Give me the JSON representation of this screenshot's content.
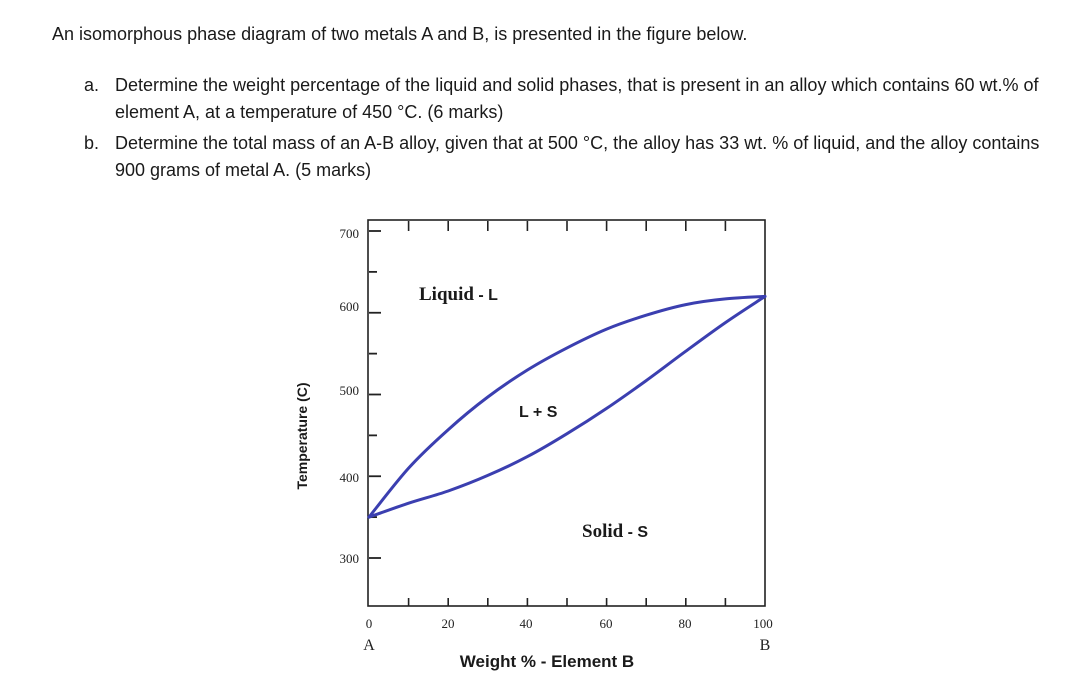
{
  "intro": "An isomorphous phase diagram of two metals A and B, is presented in the figure below.",
  "questions": [
    {
      "marker": "a.",
      "text": "Determine the weight percentage of the liquid and solid phases, that is present in an alloy which contains 60 wt.% of element A, at a temperature of 450 °C. (6 marks)"
    },
    {
      "marker": "b.",
      "text": "Determine the total mass of an A-B alloy, given that at 500 °C, the alloy has 33 wt. % of liquid, and the alloy contains 900 grams of metal A.  (5 marks)"
    }
  ],
  "diagram": {
    "y_axis_label": "Temperature (C)",
    "x_axis_label": "Weight % - Element B",
    "y_ticks": [
      "700",
      "600",
      "500",
      "400",
      "300"
    ],
    "x_ticks": [
      "0",
      "20",
      "40",
      "60",
      "80",
      "100"
    ],
    "x_end_labels": {
      "left": "A",
      "right": "B"
    },
    "regions": {
      "liquid": {
        "main": "Liquid",
        "suffix": " - L"
      },
      "two_phase": "L + S",
      "solid": {
        "main": "Solid",
        "suffix": " - S"
      }
    },
    "curve_color": "#3b3fb0",
    "melting_point_A_C": 350,
    "melting_point_B_C": 620,
    "liquidus": [
      [
        0,
        350
      ],
      [
        10,
        410
      ],
      [
        20,
        457
      ],
      [
        30,
        497
      ],
      [
        40,
        530
      ],
      [
        50,
        557
      ],
      [
        60,
        580
      ],
      [
        70,
        597
      ],
      [
        80,
        610
      ],
      [
        90,
        617
      ],
      [
        100,
        620
      ]
    ],
    "solidus": [
      [
        0,
        350
      ],
      [
        10,
        367
      ],
      [
        20,
        382
      ],
      [
        30,
        401
      ],
      [
        40,
        424
      ],
      [
        50,
        452
      ],
      [
        60,
        483
      ],
      [
        70,
        517
      ],
      [
        80,
        553
      ],
      [
        90,
        588
      ],
      [
        100,
        620
      ]
    ]
  }
}
